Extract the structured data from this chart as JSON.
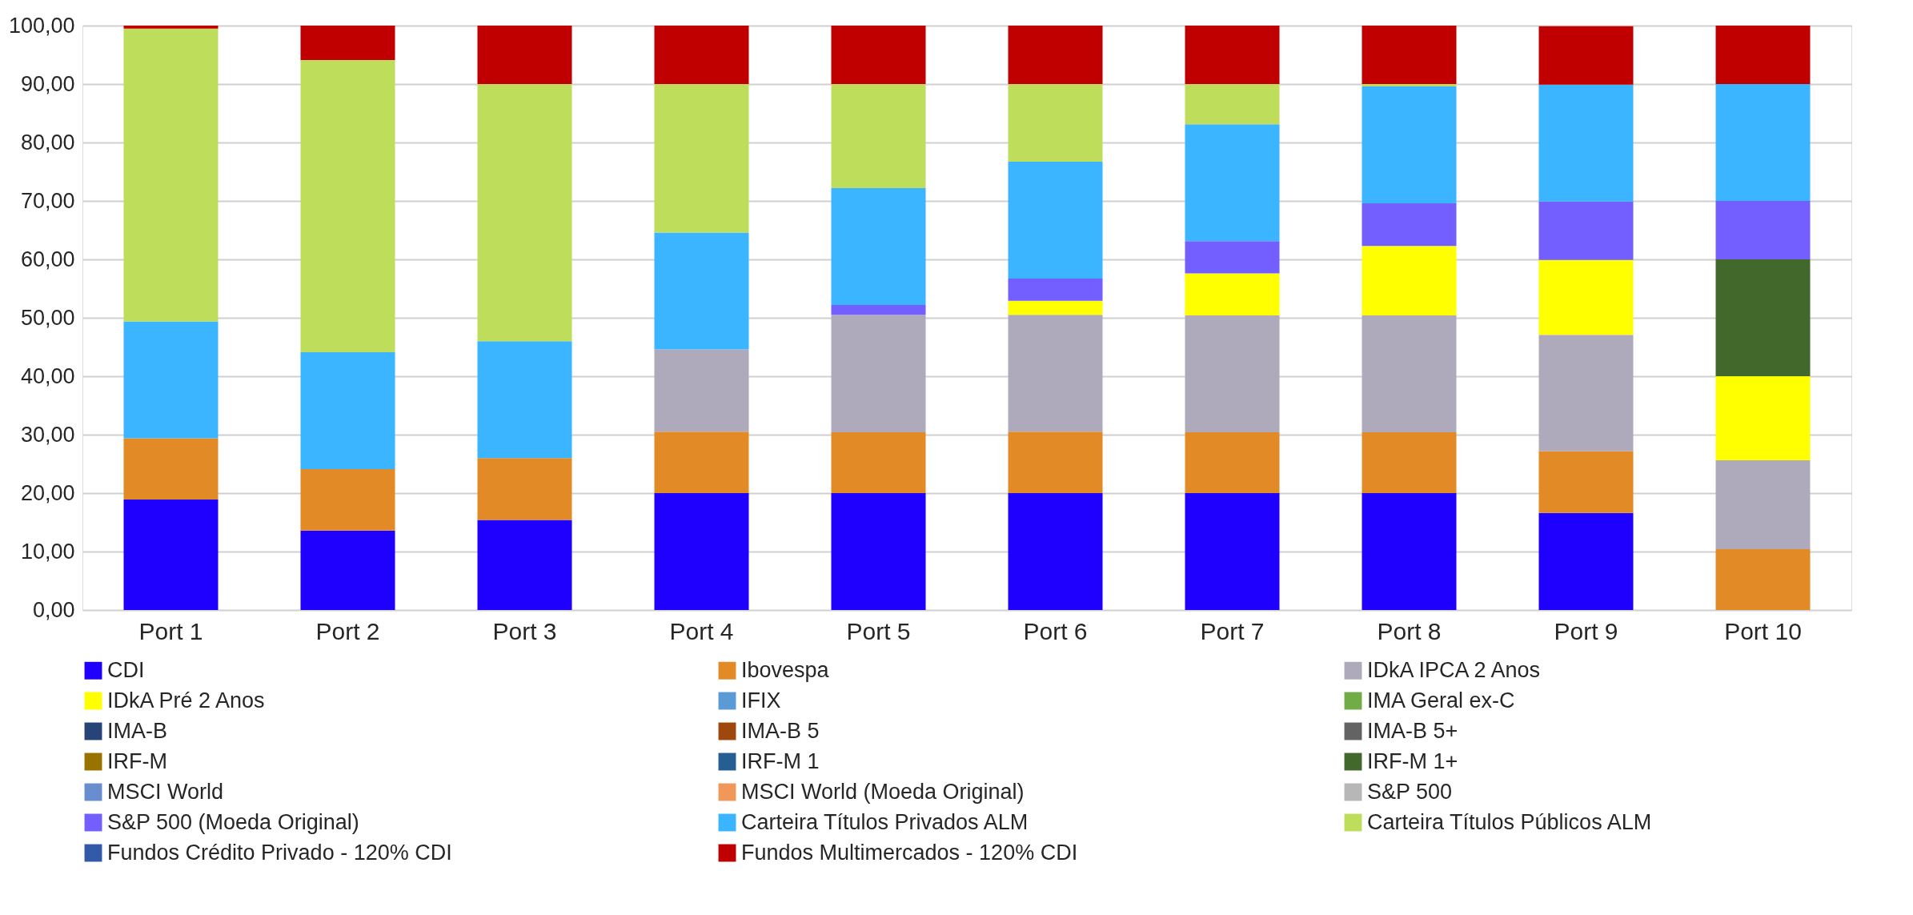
{
  "chart_data": {
    "type": "bar",
    "stacked": true,
    "categories": [
      "Port 1",
      "Port 2",
      "Port 3",
      "Port 4",
      "Port 5",
      "Port 6",
      "Port 7",
      "Port 8",
      "Port 9",
      "Port 10"
    ],
    "series": [
      {
        "name": "CDI",
        "color": "#1f00ff",
        "values": [
          18.9,
          13.6,
          15.4,
          20,
          20,
          20,
          20,
          20,
          16.6,
          null
        ]
      },
      {
        "name": "Ibovespa",
        "color": "#e28b26",
        "values": [
          10.5,
          10.5,
          10.6,
          10.5,
          10.4,
          10.5,
          10.4,
          10.4,
          10.6,
          10.4
        ]
      },
      {
        "name": "IDkA IPCA 2 Anos",
        "color": "#aeaabb",
        "values": [
          null,
          null,
          null,
          14.1,
          20.1,
          20,
          20,
          20,
          19.9,
          15.2
        ]
      },
      {
        "name": "IDkA Pré 2 Anos",
        "color": "#ffff00",
        "values": [
          null,
          null,
          null,
          null,
          null,
          2.4,
          7.2,
          11.9,
          12.8,
          14.4
        ]
      },
      {
        "name": "IFIX",
        "color": "#5b9bd5",
        "values": [
          null,
          null,
          null,
          null,
          null,
          null,
          null,
          null,
          null,
          null
        ]
      },
      {
        "name": "IMA Geral ex-C",
        "color": "#70ad47",
        "values": [
          null,
          null,
          null,
          null,
          null,
          null,
          null,
          null,
          null,
          null
        ]
      },
      {
        "name": "IMA-B",
        "color": "#264478",
        "values": [
          null,
          null,
          null,
          null,
          null,
          null,
          null,
          null,
          null,
          null
        ]
      },
      {
        "name": "IMA-B 5",
        "color": "#9e480e",
        "values": [
          null,
          null,
          null,
          null,
          null,
          null,
          null,
          null,
          null,
          null
        ]
      },
      {
        "name": "IMA-B 5+",
        "color": "#636363",
        "values": [
          null,
          null,
          null,
          null,
          null,
          null,
          null,
          null,
          null,
          null
        ]
      },
      {
        "name": "IRF-M",
        "color": "#997300",
        "values": [
          null,
          null,
          null,
          null,
          null,
          null,
          null,
          null,
          null,
          null
        ]
      },
      {
        "name": "IRF-M 1",
        "color": "#255e91",
        "values": [
          null,
          null,
          null,
          null,
          null,
          null,
          null,
          null,
          null,
          null
        ]
      },
      {
        "name": "IRF-M 1+",
        "color": "#43682b",
        "values": [
          null,
          null,
          null,
          null,
          null,
          null,
          null,
          null,
          null,
          20
        ]
      },
      {
        "name": "MSCI World",
        "color": "#698ed0",
        "values": [
          null,
          null,
          null,
          null,
          null,
          null,
          null,
          null,
          null,
          null
        ]
      },
      {
        "name": "MSCI World (Moeda Original)",
        "color": "#f1975a",
        "values": [
          null,
          null,
          null,
          null,
          null,
          null,
          null,
          null,
          null,
          null
        ]
      },
      {
        "name": "S&P 500",
        "color": "#b7b7b7",
        "values": [
          null,
          null,
          null,
          null,
          null,
          null,
          null,
          null,
          null,
          null
        ]
      },
      {
        "name": "S&P 500 (Moeda Original)",
        "color": "#735eff",
        "values": [
          null,
          null,
          null,
          null,
          1.7,
          3.8,
          5.5,
          7.3,
          10,
          10
        ]
      },
      {
        "name": "Carteira Títulos Privados ALM",
        "color": "#3bb5ff",
        "values": [
          20,
          20,
          20,
          20,
          20,
          20,
          20,
          20,
          20,
          20
        ]
      },
      {
        "name": "Carteira Títulos Públicos ALM",
        "color": "#bede5b",
        "values": [
          50.1,
          50,
          44,
          25.4,
          17.8,
          13.3,
          6.9,
          0.4,
          null,
          null
        ]
      },
      {
        "name": "Fundos Crédito Privado - 120% CDI",
        "color": "#335aa8",
        "values": [
          null,
          null,
          null,
          null,
          null,
          null,
          null,
          null,
          null,
          null
        ]
      },
      {
        "name": "Fundos Multimercados - 120% CDI",
        "color": "#c00000",
        "values": [
          0.5,
          5.9,
          10,
          10,
          10,
          10,
          10,
          10,
          10,
          10
        ]
      }
    ],
    "ylim": [
      0,
      100
    ],
    "yticks": [
      {
        "value": 0,
        "label": "0,00"
      },
      {
        "value": 10,
        "label": "10,00"
      },
      {
        "value": 20,
        "label": "20,00"
      },
      {
        "value": 30,
        "label": "30,00"
      },
      {
        "value": 40,
        "label": "40,00"
      },
      {
        "value": 50,
        "label": "50,00"
      },
      {
        "value": 60,
        "label": "60,00"
      },
      {
        "value": 70,
        "label": "70,00"
      },
      {
        "value": 80,
        "label": "80,00"
      },
      {
        "value": 90,
        "label": "90,00"
      },
      {
        "value": 100,
        "label": "100,00"
      }
    ],
    "grid": "y",
    "legend": "bottom"
  }
}
